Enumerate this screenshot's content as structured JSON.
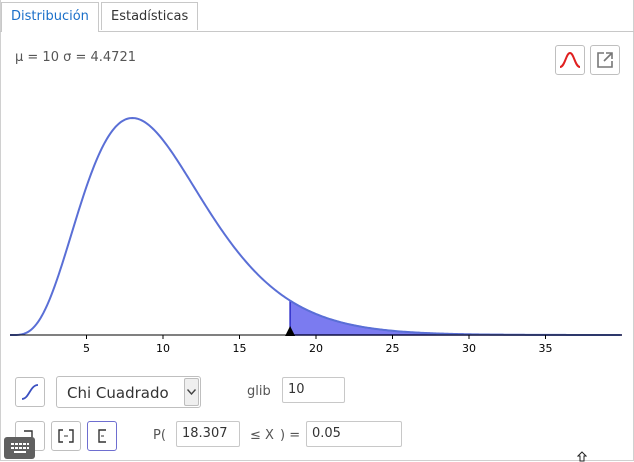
{
  "tabs": [
    {
      "label": "Distribución",
      "active": true
    },
    {
      "label": "Estadísticas",
      "active": false
    }
  ],
  "stats_text": "μ = 10 σ = 4.4721",
  "toolbar": {
    "normal_overlay_icon": "normal-curve-icon",
    "export_icon": "export-icon",
    "accent_color": "#e02020"
  },
  "chart_data": {
    "type": "area",
    "distribution": "Chi Cuadrado",
    "degrees_of_freedom": 10,
    "xlim": [
      0,
      40
    ],
    "x_ticks": [
      5,
      10,
      15,
      20,
      25,
      30,
      35
    ],
    "shaded_from": 18.307,
    "curve_color": "#5a6fd6",
    "shade_color": "#7b7bf0"
  },
  "controls": {
    "cumulative_icon": "cumulative-toggle-icon",
    "distribution_select": {
      "value": "Chi Cuadrado"
    },
    "param_label": "glib",
    "param_value": "10",
    "interval_buttons": [
      "left-sided-icon",
      "two-sided-icon",
      "right-sided-icon"
    ],
    "prob_prefix": "P(",
    "prob_lower": "18.307",
    "prob_middle": "≤ X",
    "prob_suffix": ") =",
    "prob_result": "0.05"
  }
}
